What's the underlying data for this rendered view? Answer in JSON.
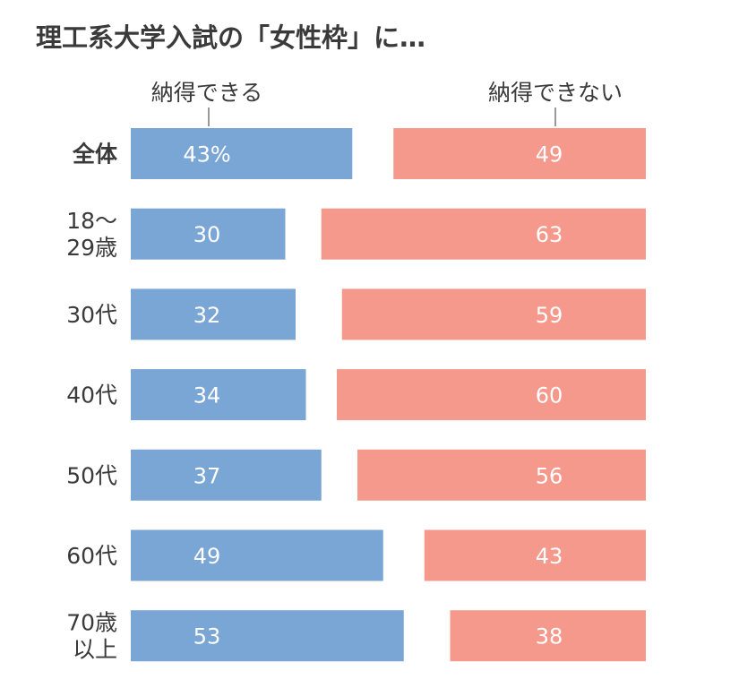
{
  "chart_data": {
    "type": "bar",
    "title": "理工系大学入試の「女性枠」に…",
    "categories": [
      {
        "lines": [
          "全体"
        ],
        "bold": true
      },
      {
        "lines": [
          "18〜",
          "29歳"
        ],
        "bold": false
      },
      {
        "lines": [
          "30代"
        ],
        "bold": false
      },
      {
        "lines": [
          "40代"
        ],
        "bold": false
      },
      {
        "lines": [
          "50代"
        ],
        "bold": false
      },
      {
        "lines": [
          "60代"
        ],
        "bold": false
      },
      {
        "lines": [
          "70歳",
          "以上"
        ],
        "bold": false
      }
    ],
    "series": [
      {
        "name": "納得できる",
        "color": "#7aa6d6",
        "values": [
          43,
          30,
          32,
          34,
          37,
          49,
          53
        ],
        "labels": [
          "43%",
          "30",
          "32",
          "34",
          "37",
          "49",
          "53"
        ]
      },
      {
        "name": "納得できない",
        "color": "#f4998b",
        "values": [
          49,
          63,
          59,
          60,
          56,
          43,
          38
        ],
        "labels": [
          "49",
          "63",
          "59",
          "60",
          "56",
          "43",
          "38"
        ]
      }
    ],
    "unit": "%",
    "xlim": [
      0,
      100
    ]
  }
}
